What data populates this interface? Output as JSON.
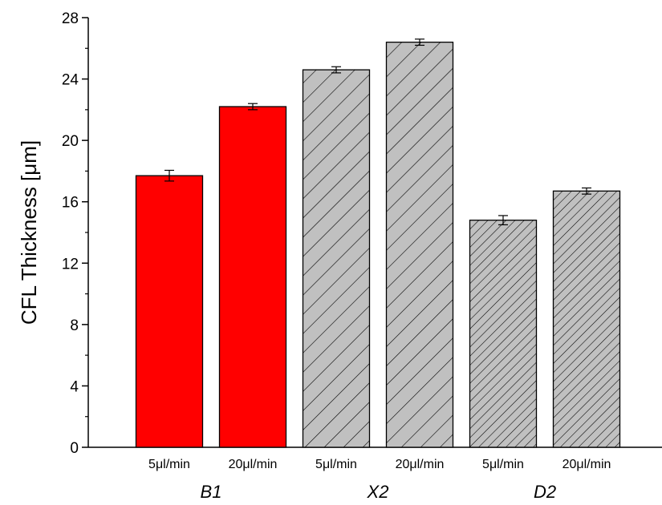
{
  "chart_data": {
    "type": "bar",
    "ylabel": "CFL Thickness [μm]",
    "ylim": [
      0,
      28
    ],
    "yticks": [
      "0",
      "4",
      "8",
      "12",
      "16",
      "20",
      "24",
      "28"
    ],
    "categories": [
      "5μl/min",
      "20μl/min",
      "5μl/min",
      "20μl/min",
      "5μl/min",
      "20μl/min"
    ],
    "groups": [
      "B1",
      "X2",
      "D2"
    ],
    "group_of_bar": [
      0,
      0,
      1,
      1,
      2,
      2
    ],
    "values": [
      17.7,
      22.2,
      24.6,
      26.4,
      14.8,
      16.7
    ],
    "errors": [
      0.35,
      0.2,
      0.2,
      0.2,
      0.3,
      0.2
    ],
    "fills": [
      "solid",
      "solid",
      "hatch-wide",
      "hatch-wide",
      "hatch-dense",
      "hatch-dense"
    ],
    "colors": {
      "solid": "#ff0000",
      "hatched": "#c0c0c0",
      "stroke": "#000000"
    },
    "grid": false,
    "legend": "none"
  }
}
